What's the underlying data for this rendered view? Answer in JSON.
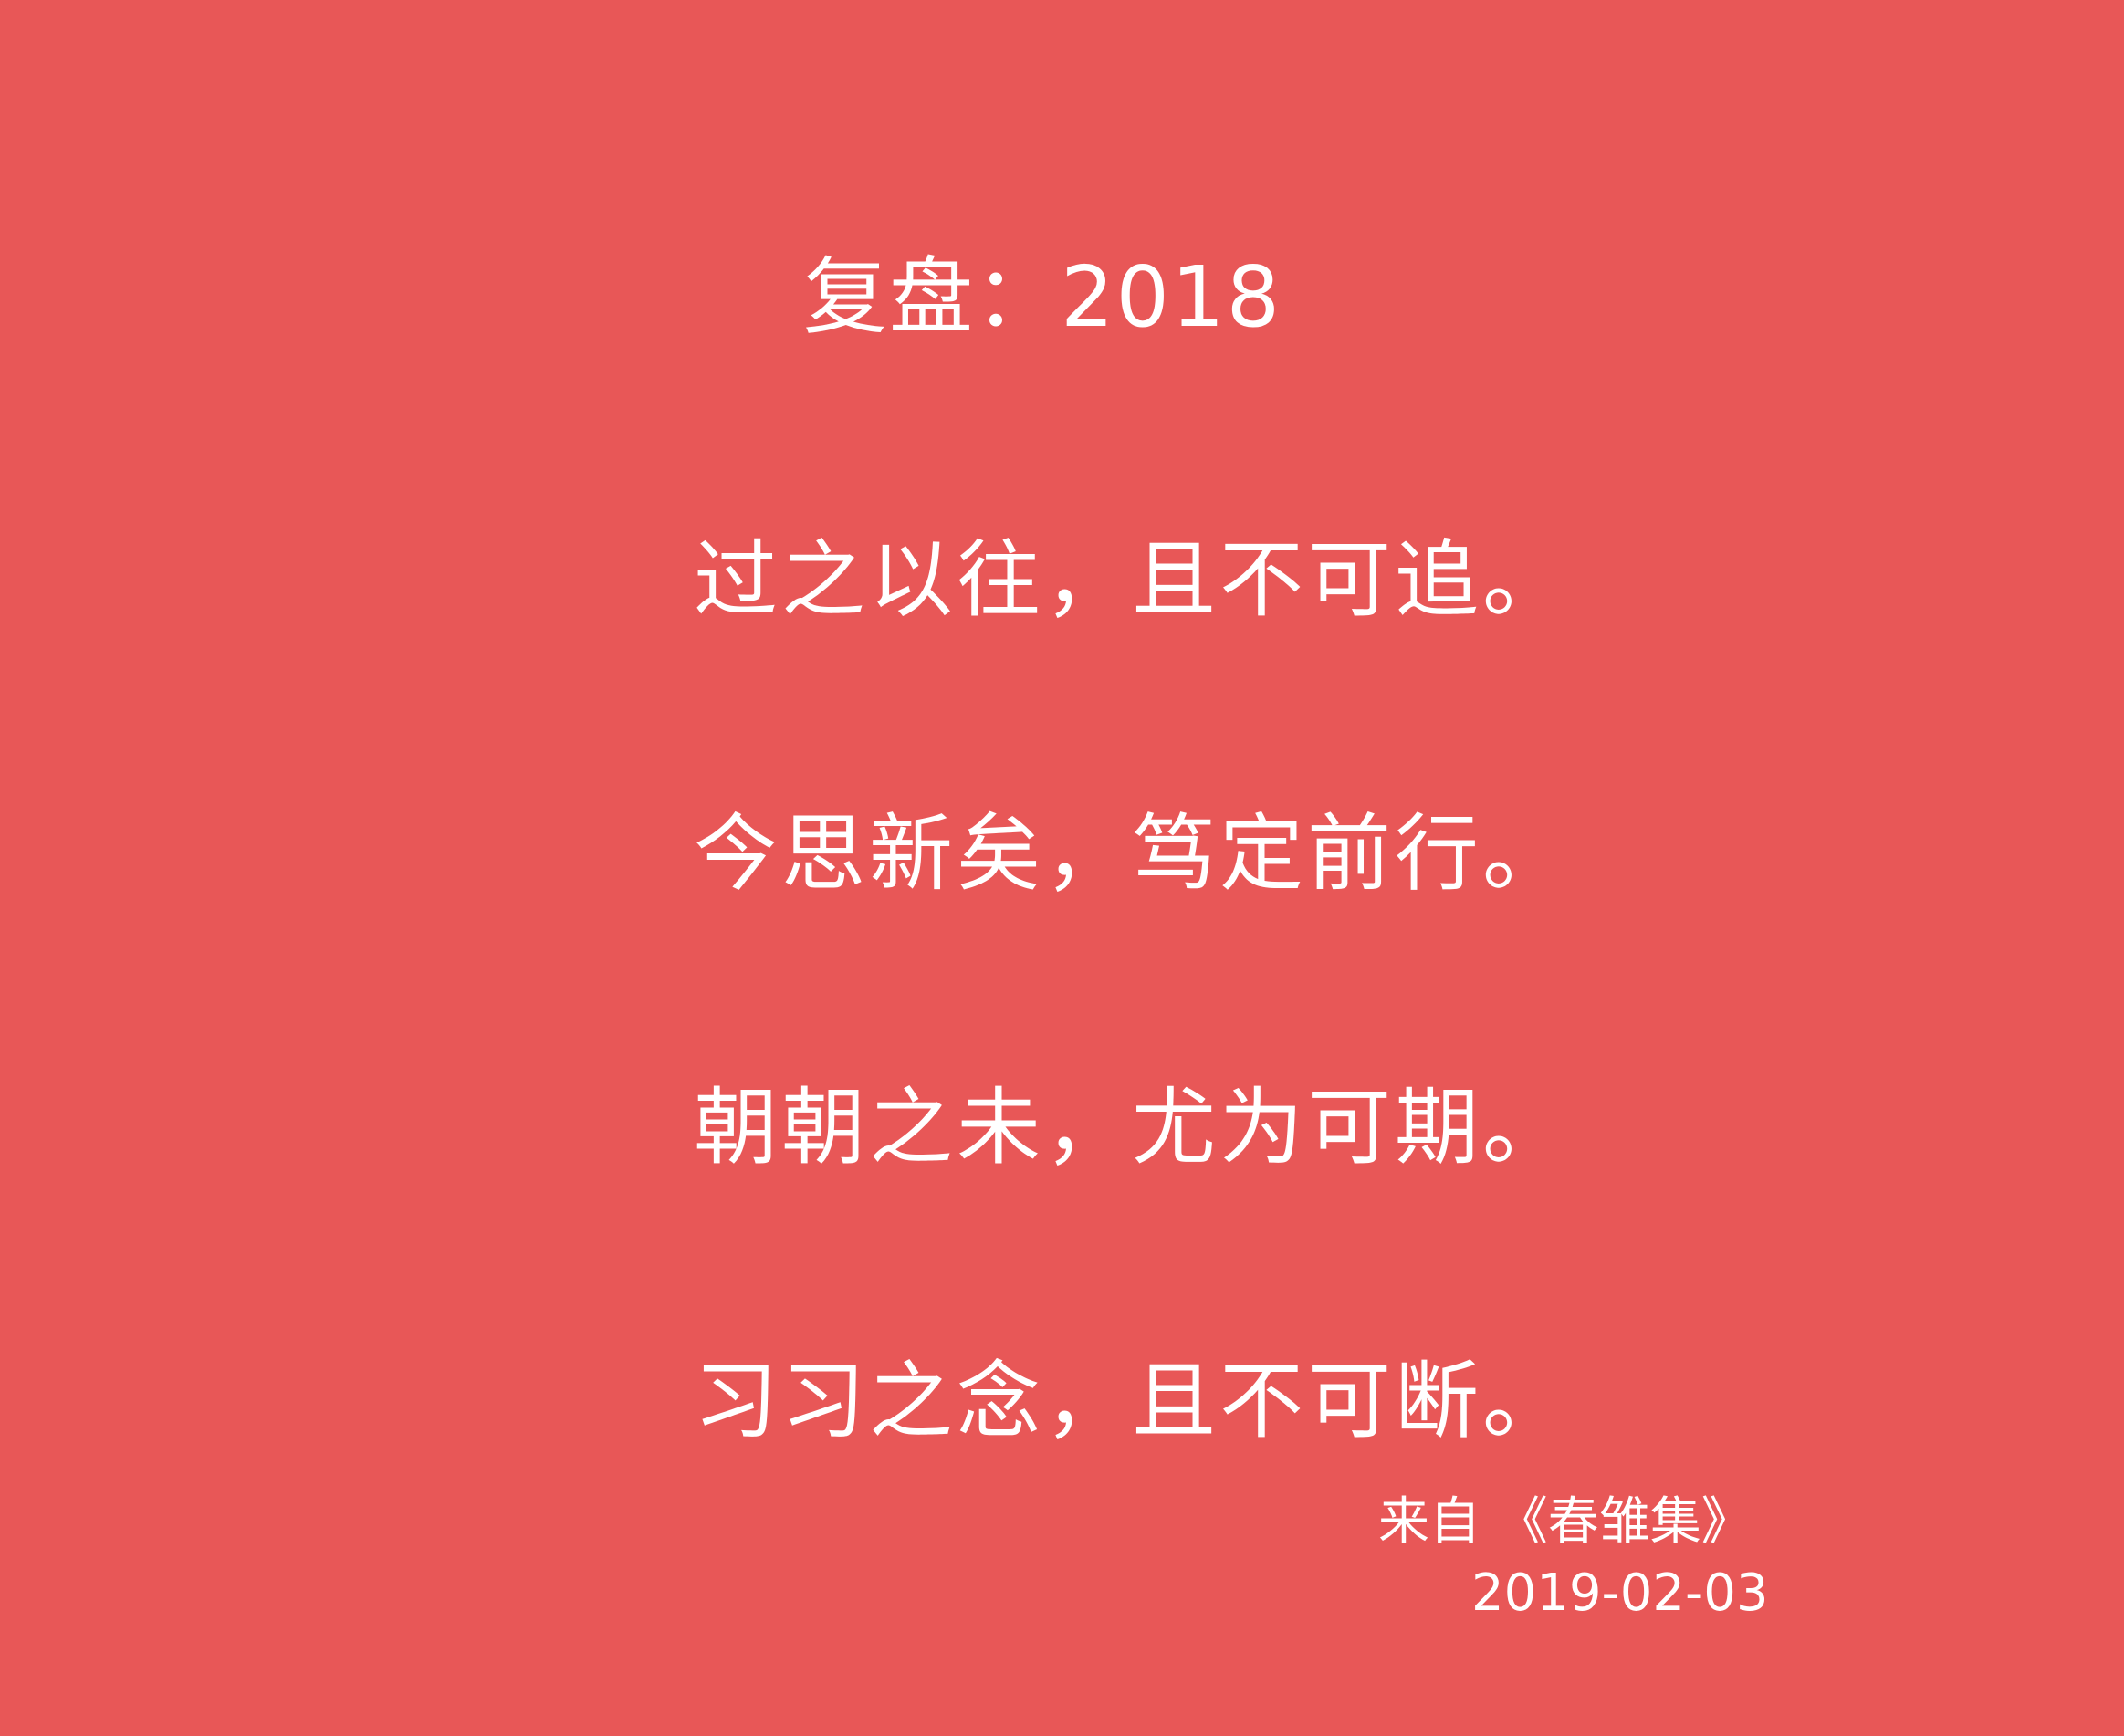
{
  "card": {
    "background_color": "#E85757",
    "text_color": "#FFFFFF",
    "title": "复盘：2018",
    "lines": [
      "过之以往，且不可追。",
      "今思新矣，笃定前行。",
      "朝朝之未，尤为可期。",
      "习习之念，且不可断。"
    ],
    "source": "来自 《春雏集》",
    "date": "2019-02-03"
  }
}
